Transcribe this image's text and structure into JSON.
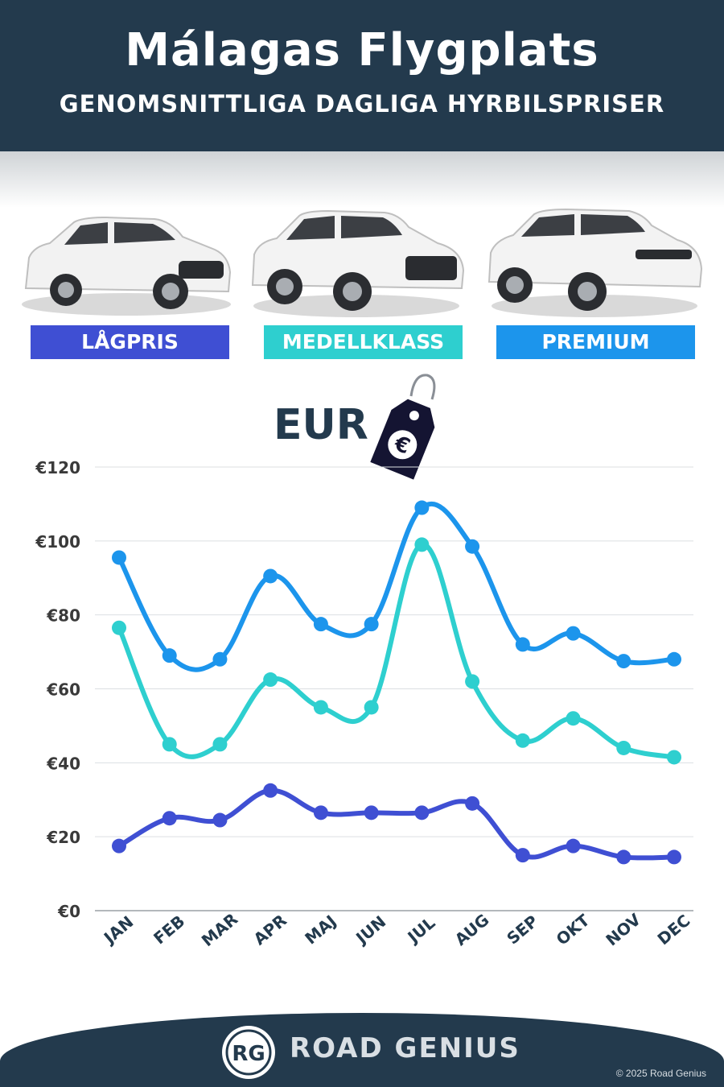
{
  "header": {
    "title": "Málagas Flygplats",
    "subtitle": "GENOMSNITTLIGA DAGLIGA HYRBILSPRISER"
  },
  "categories": [
    {
      "label": "LÅGPRIS",
      "color": "#3f4fd3"
    },
    {
      "label": "MEDELLKLASS",
      "color": "#2ecfcf"
    },
    {
      "label": "PREMIUM",
      "color": "#1c95ec"
    }
  ],
  "currency_label": "EUR",
  "tag_symbol": "€",
  "chart_data": {
    "type": "line",
    "categories": [
      "JAN",
      "FEB",
      "MAR",
      "APR",
      "MAJ",
      "JUN",
      "JUL",
      "AUG",
      "SEP",
      "OKT",
      "NOV",
      "DEC"
    ],
    "ylim": [
      0,
      120
    ],
    "yticks": [
      0,
      20,
      40,
      60,
      80,
      100,
      120
    ],
    "ytick_labels": [
      "€0",
      "€20",
      "€40",
      "€60",
      "€80",
      "€100",
      "€120"
    ],
    "grid": true,
    "series": [
      {
        "name": "PREMIUM",
        "color": "#1c95ec",
        "values": [
          95.5,
          69,
          68,
          90.5,
          77.5,
          77.5,
          109,
          98.5,
          72,
          75,
          67.5,
          68
        ]
      },
      {
        "name": "MEDELLKLASS",
        "color": "#2ecfcf",
        "values": [
          76.5,
          45,
          45,
          62.5,
          55,
          55,
          99,
          62,
          46,
          52,
          44,
          41.5
        ]
      },
      {
        "name": "LÅGPRIS",
        "color": "#3f4fd3",
        "values": [
          17.5,
          25,
          24.5,
          32.5,
          26.5,
          26.5,
          26.5,
          29,
          15,
          17.5,
          14.5,
          14.5
        ]
      }
    ]
  },
  "footer": {
    "logo_text": "RG",
    "brand": "ROAD GENIUS",
    "copyright": "© 2025 Road Genius"
  }
}
